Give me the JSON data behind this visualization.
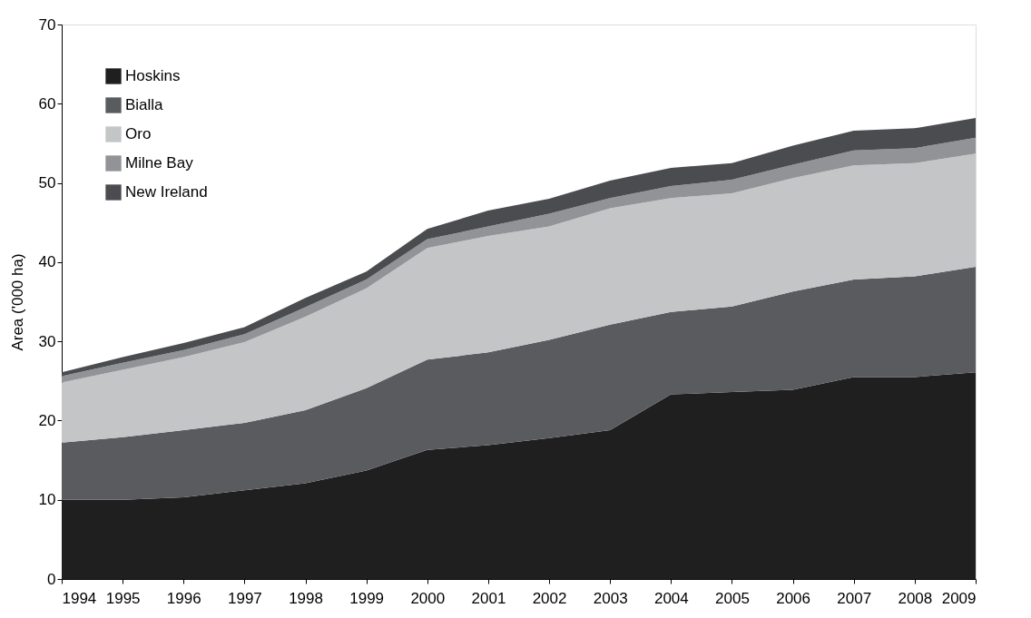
{
  "chart_data": {
    "type": "area",
    "stacked": true,
    "ylabel": "Area ('000 ha)",
    "x": [
      1994,
      1995,
      1996,
      1997,
      1998,
      1999,
      2000,
      2001,
      2002,
      2003,
      2004,
      2005,
      2006,
      2007,
      2008,
      2009
    ],
    "xlim": [
      1994,
      2009
    ],
    "xticks": [
      1994,
      1995,
      1996,
      1997,
      1998,
      1999,
      2000,
      2001,
      2002,
      2003,
      2004,
      2005,
      2006,
      2007,
      2008,
      2009
    ],
    "ylim": [
      0,
      70
    ],
    "yticks": [
      0,
      10,
      20,
      30,
      40,
      50,
      60,
      70
    ],
    "grid": false,
    "legend": "top left",
    "series": [
      {
        "name": "Hoskins",
        "color": "#1f1f1f",
        "values": [
          10.0,
          10.0,
          10.3,
          11.2,
          12.1,
          13.7,
          16.3,
          16.9,
          17.8,
          18.8,
          23.3,
          23.6,
          23.9,
          25.5,
          25.5,
          26.1
        ]
      },
      {
        "name": "Bialla",
        "color": "#5a5b5f",
        "values": [
          7.2,
          7.9,
          8.5,
          8.5,
          9.2,
          10.4,
          11.4,
          11.7,
          12.4,
          13.3,
          10.4,
          10.8,
          12.4,
          12.3,
          12.7,
          13.3
        ]
      },
      {
        "name": "Oro",
        "color": "#c4c5c7",
        "values": [
          7.6,
          8.5,
          9.2,
          10.2,
          11.8,
          12.6,
          14.1,
          14.7,
          14.3,
          14.7,
          14.4,
          14.3,
          14.3,
          14.4,
          14.3,
          14.3
        ]
      },
      {
        "name": "Milne Bay",
        "color": "#929396",
        "values": [
          0.8,
          0.9,
          0.9,
          1.0,
          1.2,
          1.1,
          1.1,
          1.2,
          1.6,
          1.3,
          1.5,
          1.7,
          1.7,
          1.9,
          1.9,
          2.0
        ]
      },
      {
        "name": "New Ireland",
        "color": "#4b4c4f",
        "values": [
          0.5,
          0.7,
          0.9,
          0.9,
          1.2,
          1.0,
          1.3,
          2.0,
          1.9,
          2.2,
          2.3,
          2.1,
          2.4,
          2.5,
          2.5,
          2.5
        ]
      }
    ]
  }
}
